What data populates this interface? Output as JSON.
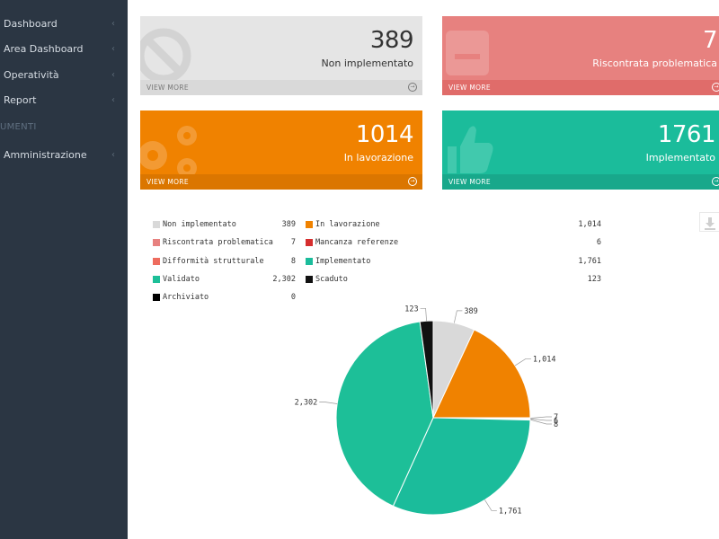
{
  "sidebar": {
    "items": [
      {
        "label": "Dashboard",
        "chevron": "‹"
      },
      {
        "label": "Area Dashboard",
        "chevron": "‹"
      },
      {
        "label": "Operatività",
        "chevron": "‹"
      },
      {
        "label": "Report",
        "chevron": "‹"
      }
    ],
    "heading": "UMENTI",
    "admin": {
      "label": "Amministrazione",
      "chevron": "‹"
    }
  },
  "tiles": [
    {
      "value": "389",
      "label": "Non implementato",
      "more": "VIEW MORE",
      "color": "#e5e5e5",
      "icon": "ban-icon"
    },
    {
      "value": "7",
      "label": "Riscontrata problematica",
      "more": "VIEW MORE",
      "color": "#e7817f",
      "icon": "comment-icon"
    },
    {
      "value": "1014",
      "label": "In lavorazione",
      "more": "VIEW MORE",
      "color": "#f08200",
      "icon": "gears-icon"
    },
    {
      "value": "1761",
      "label": "Implementato",
      "more": "VIEW MORE",
      "color": "#1bbc9b",
      "icon": "thumbs-up-icon"
    }
  ],
  "chart_data": {
    "type": "pie",
    "slices": [
      {
        "name": "Non implementato",
        "value": 389,
        "label": "389",
        "color": "#d9d9d9"
      },
      {
        "name": "In lavorazione",
        "value": 1014,
        "label": "1,014",
        "color": "#f08200"
      },
      {
        "name": "Riscontrata problematica",
        "value": 7,
        "label": "7",
        "color": "#e7817f"
      },
      {
        "name": "Mancanza referenze",
        "value": 6,
        "label": "6",
        "color": "#d62e2e"
      },
      {
        "name": "Difformità strutturale",
        "value": 8,
        "label": "8",
        "color": "#ee6c5e"
      },
      {
        "name": "Implementato",
        "value": 1761,
        "label": "1,761",
        "color": "#1bbc9b"
      },
      {
        "name": "Validato",
        "value": 2302,
        "label": "2,302",
        "color": "#1dbf98"
      },
      {
        "name": "Scaduto",
        "value": 123,
        "label": "123",
        "color": "#111111"
      },
      {
        "name": "Archiviato",
        "value": 0,
        "label": "0",
        "color": "#000000"
      }
    ],
    "legend": [
      {
        "name": "Non implementato",
        "value": "389",
        "color": "#d9d9d9"
      },
      {
        "name": "In lavorazione",
        "value": "1,014",
        "color": "#f08200"
      },
      {
        "name": "Riscontrata problematica",
        "value": "7",
        "color": "#e7817f"
      },
      {
        "name": "Mancanza referenze",
        "value": "6",
        "color": "#d62e2e"
      },
      {
        "name": "Difformità strutturale",
        "value": "8",
        "color": "#ee6c5e"
      },
      {
        "name": "Implementato",
        "value": "1,761",
        "color": "#1bbc9b"
      },
      {
        "name": "Validato",
        "value": "2,302",
        "color": "#1dbf98"
      },
      {
        "name": "Scaduto",
        "value": "123",
        "color": "#111111"
      },
      {
        "name": "Archiviato",
        "value": "0",
        "color": "#000000"
      }
    ]
  },
  "download": {
    "icon": "download-icon"
  }
}
